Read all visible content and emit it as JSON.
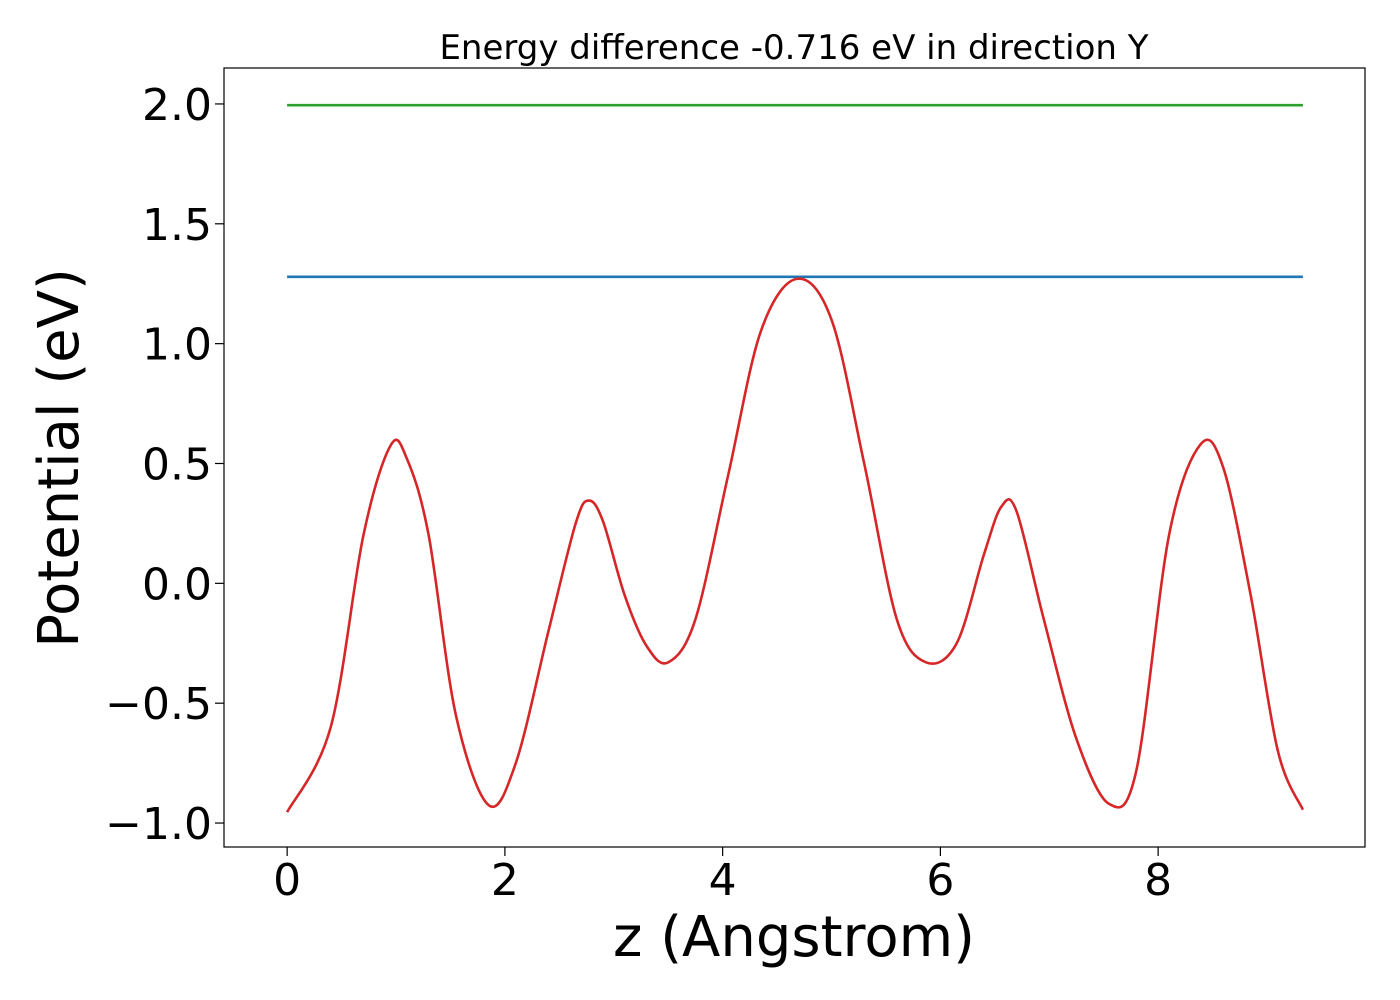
{
  "chart_data": {
    "type": "line",
    "title": "Energy difference -0.716 eV in direction Y",
    "xlabel": "z (Angstrom)",
    "ylabel": "Potential (eV)",
    "xlim": [
      -0.58,
      9.9
    ],
    "ylim": [
      -1.1,
      2.15
    ],
    "xticks": [
      0,
      2,
      4,
      6,
      8
    ],
    "xtick_labels": [
      "0",
      "2",
      "4",
      "6",
      "8"
    ],
    "yticks": [
      -1.0,
      -0.5,
      0.0,
      0.5,
      1.0,
      1.5,
      2.0
    ],
    "ytick_labels": [
      "−1.0",
      "−0.5",
      "0.0",
      "0.5",
      "1.0",
      "1.5",
      "2.0"
    ],
    "grid": false,
    "series": [
      {
        "color": "#2ca02c",
        "x": [
          0,
          9.33
        ],
        "y": [
          1.995,
          1.995
        ]
      },
      {
        "color": "#1f77b4",
        "x": [
          0,
          9.33
        ],
        "y": [
          1.279,
          1.279
        ]
      },
      {
        "color": "#d62728",
        "x": [
          0,
          0.4,
          0.7,
          0.95,
          1.1,
          1.3,
          1.55,
          1.85,
          2.1,
          2.4,
          2.65,
          2.77,
          2.9,
          3.1,
          3.3,
          3.5,
          3.75,
          4.05,
          4.35,
          4.68,
          5.0,
          5.3,
          5.6,
          5.87,
          6.15,
          6.4,
          6.56,
          6.7,
          6.95,
          7.25,
          7.55,
          7.8,
          8.1,
          8.39,
          8.6,
          8.85,
          9.1,
          9.33
        ],
        "y": [
          -0.955,
          -0.6,
          0.2,
          0.575,
          0.52,
          0.2,
          -0.55,
          -0.925,
          -0.75,
          -0.2,
          0.25,
          0.345,
          0.26,
          -0.05,
          -0.26,
          -0.33,
          -0.15,
          0.45,
          1.05,
          1.27,
          1.1,
          0.5,
          -0.15,
          -0.33,
          -0.25,
          0.12,
          0.32,
          0.3,
          -0.15,
          -0.65,
          -0.92,
          -0.78,
          0.2,
          0.58,
          0.48,
          -0.05,
          -0.7,
          -0.945
        ]
      }
    ]
  }
}
